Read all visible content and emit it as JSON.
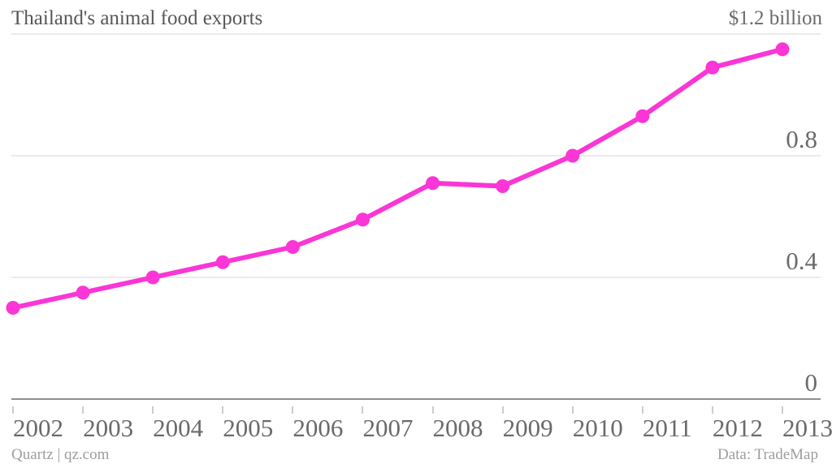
{
  "header": {
    "title": "Thailand's animal food exports",
    "top_axis_label": "$1.2 billion"
  },
  "footer": {
    "credit": "Quartz | qz.com",
    "source": "Data: TradeMap"
  },
  "colors": {
    "line": "#fa36d6",
    "title_text": "#57575a",
    "axis_text": "#6a6a6a",
    "footer_text": "#9d9d9d",
    "gridline": "#ebebeb",
    "axis_line": "#8f8f8f",
    "tick": "#cccccc",
    "background": "#ffffff"
  },
  "chart_data": {
    "type": "line",
    "title": "Thailand's animal food exports",
    "x": [
      "2002",
      "2003",
      "2004",
      "2005",
      "2006",
      "2007",
      "2008",
      "2009",
      "2010",
      "2011",
      "2012",
      "2013"
    ],
    "values": [
      0.3,
      0.35,
      0.4,
      0.45,
      0.5,
      0.59,
      0.71,
      0.7,
      0.8,
      0.93,
      1.09,
      1.15
    ],
    "ylim": [
      0,
      1.2
    ],
    "yticks": [
      {
        "value": 0,
        "label": "0"
      },
      {
        "value": 0.4,
        "label": "0.4"
      },
      {
        "value": 0.8,
        "label": "0.8"
      },
      {
        "value": 1.2,
        "label": "$1.2 billion",
        "position": "header"
      }
    ],
    "grid": true,
    "legend": "none",
    "line_color": "#fa36d6",
    "marker": "circle"
  }
}
